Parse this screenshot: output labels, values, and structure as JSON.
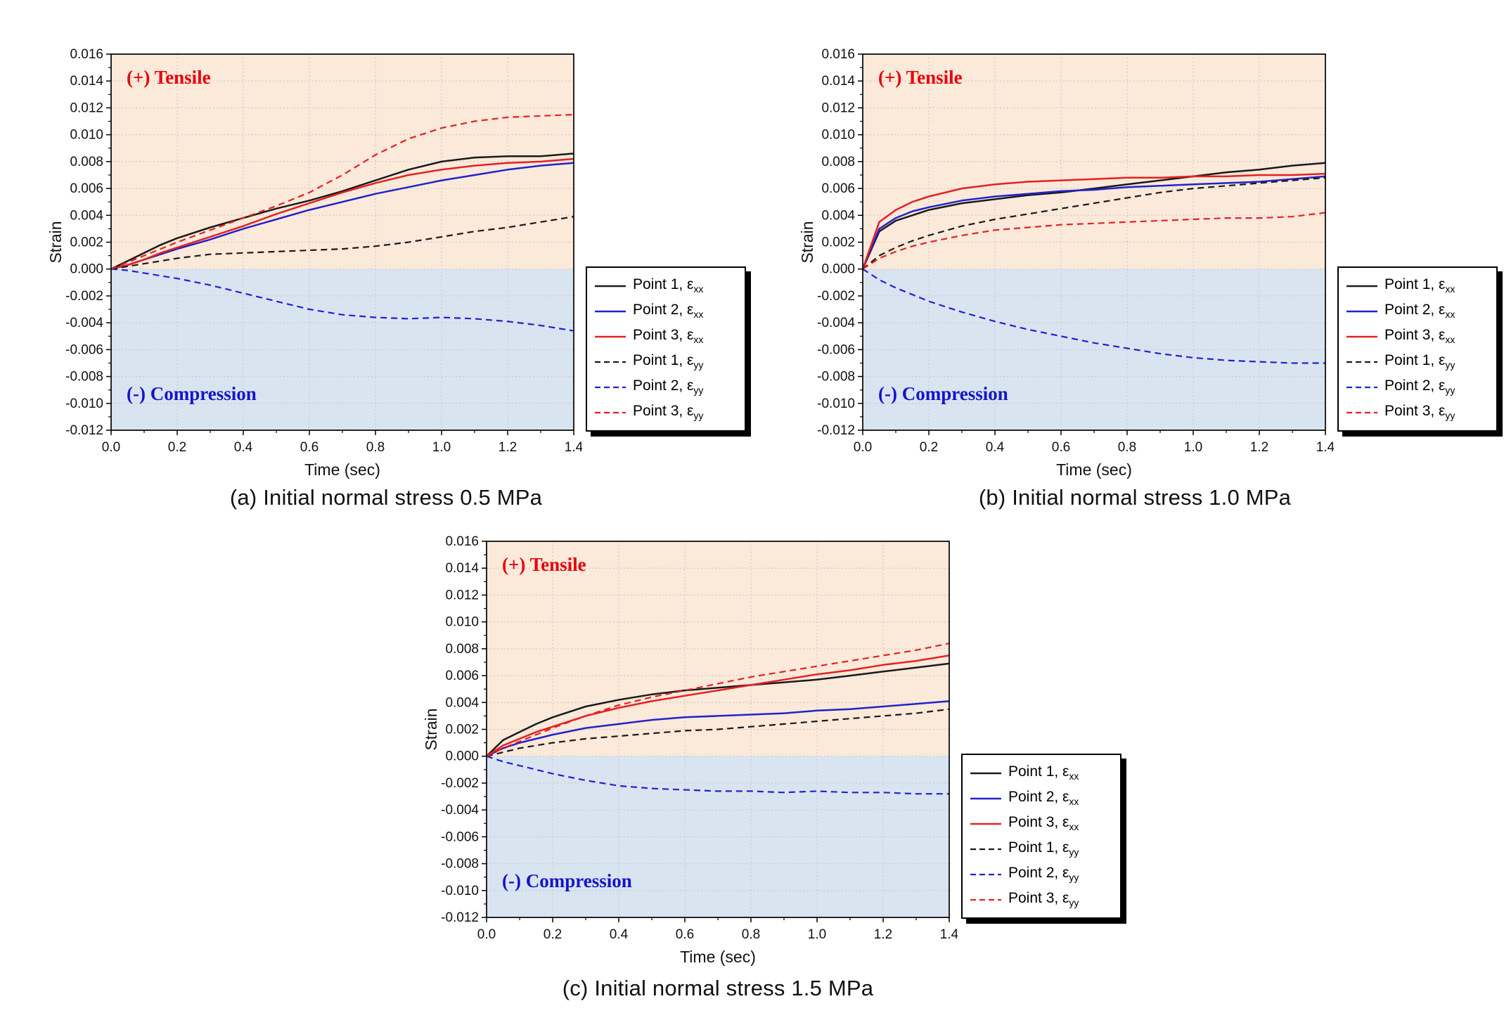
{
  "figure": {
    "background": "#ffffff",
    "line_colors": {
      "point1": "#1a1a1a",
      "point2": "#2222cc",
      "point3": "#e32222"
    },
    "region_colors": {
      "tensile_fill": "#fbe9da",
      "compression_fill": "#d9e4f1",
      "tensile_text": "#e8000b",
      "compression_text": "#1414cd"
    }
  },
  "chart_data": [
    {
      "type": "line",
      "caption": "(a) Initial normal stress 0.5 MPa",
      "xlabel": "Time (sec)",
      "ylabel": "Strain",
      "xlim": [
        0,
        1.4
      ],
      "ylim": [
        -0.012,
        0.016
      ],
      "x_tick_step": 0.2,
      "y_tick_step": 0.002,
      "grid": true,
      "legend_position": "outside right, lower half",
      "annotations": [
        {
          "text": "(+) Tensile",
          "color": "#e8000b",
          "region": "tensile"
        },
        {
          "text": "(-) Compression",
          "color": "#1414cd",
          "region": "compression"
        }
      ],
      "regions": [
        {
          "name": "tensile",
          "fill": "#fbe9da",
          "y_range": [
            0,
            0.016
          ]
        },
        {
          "name": "compression",
          "fill": "#d9e4f1",
          "y_range": [
            -0.012,
            0
          ]
        }
      ],
      "x": [
        0,
        0.05,
        0.1,
        0.15,
        0.2,
        0.3,
        0.4,
        0.5,
        0.6,
        0.7,
        0.8,
        0.9,
        1.0,
        1.1,
        1.2,
        1.3,
        1.4
      ],
      "series": [
        {
          "label": "Point 1, ε",
          "sub": "xx",
          "color": "#1a1a1a",
          "style": "solid",
          "y": [
            0,
            0.0006,
            0.0012,
            0.0018,
            0.0023,
            0.0031,
            0.0038,
            0.0045,
            0.0051,
            0.0058,
            0.0066,
            0.0074,
            0.008,
            0.0083,
            0.0084,
            0.0084,
            0.0086
          ]
        },
        {
          "label": "Point 2, ε",
          "sub": "xx",
          "color": "#2222cc",
          "style": "solid",
          "y": [
            0,
            0.0003,
            0.0007,
            0.0011,
            0.0015,
            0.0022,
            0.003,
            0.0037,
            0.0044,
            0.005,
            0.0056,
            0.0061,
            0.0066,
            0.007,
            0.0074,
            0.0077,
            0.0079
          ]
        },
        {
          "label": "Point 3, ε",
          "sub": "xx",
          "color": "#e32222",
          "style": "solid",
          "y": [
            0,
            0.0003,
            0.0007,
            0.0012,
            0.0016,
            0.0024,
            0.0032,
            0.0041,
            0.0049,
            0.0057,
            0.0064,
            0.007,
            0.0074,
            0.0077,
            0.0079,
            0.008,
            0.0082
          ]
        },
        {
          "label": "Point 1, ε",
          "sub": "yy",
          "color": "#1a1a1a",
          "style": "dashed",
          "y": [
            0,
            0.0002,
            0.0004,
            0.0006,
            0.0008,
            0.0011,
            0.0012,
            0.0013,
            0.0014,
            0.0015,
            0.0017,
            0.002,
            0.0024,
            0.0028,
            0.0031,
            0.0035,
            0.0039
          ]
        },
        {
          "label": "Point 2, ε",
          "sub": "yy",
          "color": "#2222cc",
          "style": "dashed",
          "y": [
            0,
            -0.0001,
            -0.0003,
            -0.0005,
            -0.0007,
            -0.0012,
            -0.0018,
            -0.0024,
            -0.003,
            -0.0034,
            -0.0036,
            -0.0037,
            -0.0036,
            -0.0037,
            -0.0039,
            -0.0042,
            -0.0046
          ]
        },
        {
          "label": "Point 3, ε",
          "sub": "yy",
          "color": "#e32222",
          "style": "dashed",
          "y": [
            0,
            0.0005,
            0.001,
            0.0015,
            0.002,
            0.0029,
            0.0038,
            0.0047,
            0.0057,
            0.007,
            0.0085,
            0.0097,
            0.0105,
            0.011,
            0.0113,
            0.0114,
            0.0115
          ]
        }
      ]
    },
    {
      "type": "line",
      "caption": "(b) Initial normal stress 1.0 MPa",
      "xlabel": "Time (sec)",
      "ylabel": "Strain",
      "xlim": [
        0,
        1.4
      ],
      "ylim": [
        -0.012,
        0.016
      ],
      "x_tick_step": 0.2,
      "y_tick_step": 0.002,
      "grid": true,
      "legend_position": "outside right, lower half",
      "annotations": [
        {
          "text": "(+) Tensile",
          "color": "#e8000b",
          "region": "tensile"
        },
        {
          "text": "(-) Compression",
          "color": "#1414cd",
          "region": "compression"
        }
      ],
      "regions": [
        {
          "name": "tensile",
          "fill": "#fbe9da",
          "y_range": [
            0,
            0.016
          ]
        },
        {
          "name": "compression",
          "fill": "#d9e4f1",
          "y_range": [
            -0.012,
            0
          ]
        }
      ],
      "x": [
        0,
        0.05,
        0.1,
        0.15,
        0.2,
        0.3,
        0.4,
        0.5,
        0.6,
        0.7,
        0.8,
        0.9,
        1.0,
        1.1,
        1.2,
        1.3,
        1.4
      ],
      "series": [
        {
          "label": "Point 1, ε",
          "sub": "xx",
          "color": "#1a1a1a",
          "style": "solid",
          "y": [
            0,
            0.0028,
            0.0036,
            0.004,
            0.0044,
            0.0049,
            0.0052,
            0.0055,
            0.0057,
            0.006,
            0.0063,
            0.0066,
            0.0069,
            0.0072,
            0.0074,
            0.0077,
            0.0079
          ]
        },
        {
          "label": "Point 2, ε",
          "sub": "xx",
          "color": "#2222cc",
          "style": "solid",
          "y": [
            0,
            0.003,
            0.0038,
            0.0043,
            0.0046,
            0.0051,
            0.0054,
            0.0056,
            0.0058,
            0.0059,
            0.0061,
            0.0062,
            0.0063,
            0.0064,
            0.0065,
            0.0067,
            0.0069
          ]
        },
        {
          "label": "Point 3, ε",
          "sub": "xx",
          "color": "#e32222",
          "style": "solid",
          "y": [
            0,
            0.0035,
            0.0044,
            0.005,
            0.0054,
            0.006,
            0.0063,
            0.0065,
            0.0066,
            0.0067,
            0.0068,
            0.0068,
            0.0069,
            0.0069,
            0.007,
            0.007,
            0.0071
          ]
        },
        {
          "label": "Point 1, ε",
          "sub": "yy",
          "color": "#1a1a1a",
          "style": "dashed",
          "y": [
            0,
            0.001,
            0.0016,
            0.0021,
            0.0025,
            0.0032,
            0.0037,
            0.0041,
            0.0045,
            0.0049,
            0.0053,
            0.0057,
            0.006,
            0.0062,
            0.0064,
            0.0066,
            0.0068
          ]
        },
        {
          "label": "Point 2, ε",
          "sub": "yy",
          "color": "#2222cc",
          "style": "dashed",
          "y": [
            0,
            -0.0008,
            -0.0014,
            -0.0019,
            -0.0024,
            -0.0032,
            -0.0039,
            -0.0045,
            -0.005,
            -0.0055,
            -0.0059,
            -0.0063,
            -0.0066,
            -0.0068,
            -0.0069,
            -0.007,
            -0.007
          ]
        },
        {
          "label": "Point 3, ε",
          "sub": "yy",
          "color": "#e32222",
          "style": "dashed",
          "y": [
            0,
            0.0008,
            0.0013,
            0.0017,
            0.002,
            0.0025,
            0.0029,
            0.0031,
            0.0033,
            0.0034,
            0.0035,
            0.0036,
            0.0037,
            0.0038,
            0.0038,
            0.0039,
            0.0042
          ]
        }
      ]
    },
    {
      "type": "line",
      "caption": "(c) Initial normal stress 1.5 MPa",
      "xlabel": "Time (sec)",
      "ylabel": "Strain",
      "xlim": [
        0,
        1.4
      ],
      "ylim": [
        -0.012,
        0.016
      ],
      "x_tick_step": 0.2,
      "y_tick_step": 0.002,
      "grid": true,
      "legend_position": "outside right, lower half",
      "annotations": [
        {
          "text": "(+) Tensile",
          "color": "#e8000b",
          "region": "tensile"
        },
        {
          "text": "(-) Compression",
          "color": "#1414cd",
          "region": "compression"
        }
      ],
      "regions": [
        {
          "name": "tensile",
          "fill": "#fbe9da",
          "y_range": [
            0,
            0.016
          ]
        },
        {
          "name": "compression",
          "fill": "#d9e4f1",
          "y_range": [
            -0.012,
            0
          ]
        }
      ],
      "x": [
        0,
        0.05,
        0.1,
        0.15,
        0.2,
        0.3,
        0.4,
        0.5,
        0.6,
        0.7,
        0.8,
        0.9,
        1.0,
        1.1,
        1.2,
        1.3,
        1.4
      ],
      "series": [
        {
          "label": "Point 1, ε",
          "sub": "xx",
          "color": "#1a1a1a",
          "style": "solid",
          "y": [
            0,
            0.0012,
            0.0018,
            0.0024,
            0.0029,
            0.0037,
            0.0042,
            0.0046,
            0.0049,
            0.0051,
            0.0053,
            0.0055,
            0.0057,
            0.006,
            0.0063,
            0.0066,
            0.0069
          ]
        },
        {
          "label": "Point 2, ε",
          "sub": "xx",
          "color": "#2222cc",
          "style": "solid",
          "y": [
            0,
            0.0006,
            0.001,
            0.0013,
            0.0016,
            0.0021,
            0.0024,
            0.0027,
            0.0029,
            0.003,
            0.0031,
            0.0032,
            0.0034,
            0.0035,
            0.0037,
            0.0039,
            0.0041
          ]
        },
        {
          "label": "Point 3, ε",
          "sub": "xx",
          "color": "#e32222",
          "style": "solid",
          "y": [
            0,
            0.0008,
            0.0013,
            0.0018,
            0.0022,
            0.003,
            0.0036,
            0.0041,
            0.0045,
            0.0049,
            0.0053,
            0.0057,
            0.0061,
            0.0064,
            0.0068,
            0.0071,
            0.0075
          ]
        },
        {
          "label": "Point 1, ε",
          "sub": "yy",
          "color": "#1a1a1a",
          "style": "dashed",
          "y": [
            0,
            0.0003,
            0.0006,
            0.0008,
            0.001,
            0.0013,
            0.0015,
            0.0017,
            0.0019,
            0.002,
            0.0022,
            0.0024,
            0.0026,
            0.0028,
            0.003,
            0.0032,
            0.0035
          ]
        },
        {
          "label": "Point 2, ε",
          "sub": "yy",
          "color": "#2222cc",
          "style": "dashed",
          "y": [
            0,
            -0.0004,
            -0.0007,
            -0.001,
            -0.0013,
            -0.0018,
            -0.0022,
            -0.0024,
            -0.0025,
            -0.0026,
            -0.0026,
            -0.0027,
            -0.0026,
            -0.0027,
            -0.0027,
            -0.0028,
            -0.0028
          ]
        },
        {
          "label": "Point 3, ε",
          "sub": "yy",
          "color": "#e32222",
          "style": "dashed",
          "y": [
            0,
            0.0006,
            0.0011,
            0.0016,
            0.0021,
            0.003,
            0.0038,
            0.0044,
            0.0049,
            0.0054,
            0.0059,
            0.0063,
            0.0067,
            0.0071,
            0.0075,
            0.0079,
            0.0084
          ]
        }
      ]
    }
  ]
}
